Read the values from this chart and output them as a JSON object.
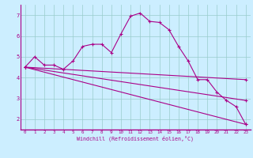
{
  "xlabel": "Windchill (Refroidissement éolien,°C)",
  "background_color": "#cceeff",
  "line_color": "#aa0088",
  "grid_color": "#99cccc",
  "xlim": [
    -0.5,
    23.5
  ],
  "ylim": [
    1.5,
    7.5
  ],
  "yticks": [
    2,
    3,
    4,
    5,
    6,
    7
  ],
  "xticks": [
    0,
    1,
    2,
    3,
    4,
    5,
    6,
    7,
    8,
    9,
    10,
    11,
    12,
    13,
    14,
    15,
    16,
    17,
    18,
    19,
    20,
    21,
    22,
    23
  ],
  "line1_x": [
    0,
    1,
    2,
    3,
    4,
    5,
    6,
    7,
    8,
    9,
    10,
    11,
    12,
    13,
    14,
    15,
    16,
    17,
    18,
    19,
    20,
    21,
    22,
    23
  ],
  "line1_y": [
    4.5,
    5.0,
    4.6,
    4.6,
    4.4,
    4.8,
    5.5,
    5.6,
    5.6,
    5.2,
    6.1,
    6.95,
    7.1,
    6.7,
    6.65,
    6.3,
    5.5,
    4.8,
    3.9,
    3.9,
    3.3,
    2.9,
    2.6,
    1.75
  ],
  "line2_x": [
    0,
    23
  ],
  "line2_y": [
    4.5,
    3.9
  ],
  "line3_x": [
    0,
    23
  ],
  "line3_y": [
    4.5,
    2.9
  ],
  "line4_x": [
    0,
    23
  ],
  "line4_y": [
    4.5,
    1.75
  ]
}
